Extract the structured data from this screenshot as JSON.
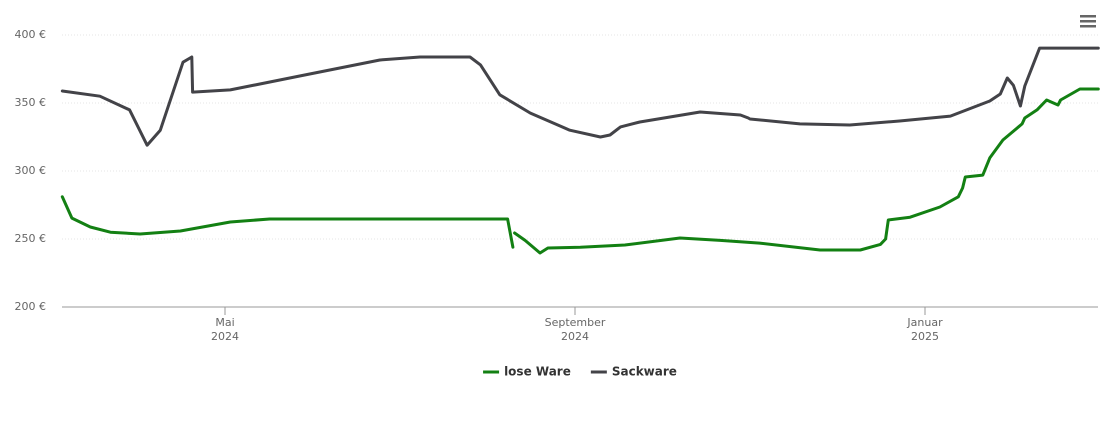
{
  "chart_data": {
    "type": "line",
    "xlim": [
      2.137,
      13.977
    ],
    "xticks": [
      {
        "value": 4,
        "label": "Mai 2024"
      },
      {
        "value": 8,
        "label": "September 2024"
      },
      {
        "value": 12,
        "label": "Januar 2025"
      }
    ],
    "ylim": [
      200,
      400
    ],
    "yticks": [
      {
        "value": 200,
        "label": "200 €"
      },
      {
        "value": 250,
        "label": "250 €"
      },
      {
        "value": 300,
        "label": "300 €"
      },
      {
        "value": 350,
        "label": "350 €"
      },
      {
        "value": 400,
        "label": "400 €"
      }
    ],
    "grid": true,
    "legend": "bottom",
    "series": [
      {
        "name": "lose Ware",
        "color": "#138013",
        "x": [
          2.14,
          2.25,
          2.46,
          2.69,
          3.03,
          3.49,
          4.06,
          4.51,
          6.0,
          7.23,
          7.29,
          7.3,
          7.31,
          7.43,
          7.6,
          7.69,
          8.06,
          8.57,
          9.2,
          9.66,
          10.11,
          10.8,
          11.26,
          11.49,
          11.55,
          11.58,
          11.83,
          12.17,
          12.38,
          12.43,
          12.46,
          12.66,
          12.74,
          12.89,
          13.11,
          13.14,
          13.28,
          13.39,
          13.52,
          13.55,
          13.77,
          13.98
        ],
        "values": [
          281,
          265.4,
          258.8,
          255,
          253.7,
          255.9,
          262.5,
          264.7,
          264.7,
          264.7,
          244,
          null,
          254.4,
          249,
          239.7,
          243.4,
          244,
          245.6,
          250.7,
          249,
          247,
          241.9,
          241.9,
          246,
          250,
          264,
          266,
          273.5,
          281,
          287.5,
          295.6,
          297,
          309.6,
          322.8,
          334.6,
          339,
          344.9,
          352.2,
          348.5,
          352.2,
          360.3,
          360.3
        ]
      },
      {
        "name": "Sackware",
        "color": "#434348",
        "x": [
          2.14,
          2.57,
          2.91,
          3.11,
          3.26,
          3.52,
          3.62,
          3.63,
          4.06,
          4.86,
          5.77,
          6.23,
          6.8,
          6.92,
          7.14,
          7.49,
          7.94,
          8.29,
          8.4,
          8.52,
          8.74,
          9.43,
          9.89,
          9.98,
          10.0,
          10.57,
          11.14,
          11.71,
          12.29,
          12.74,
          12.86,
          12.94,
          13.01,
          13.09,
          13.14,
          13.31,
          13.98
        ],
        "values": [
          358.8,
          355,
          344.9,
          319,
          330,
          380,
          383.8,
          358,
          359.6,
          369.9,
          381.6,
          383.8,
          383.8,
          378,
          356,
          342.6,
          330,
          325,
          326.5,
          332.4,
          336,
          343.4,
          341.2,
          339,
          338.2,
          334.6,
          333.8,
          336.8,
          340.4,
          351.5,
          356.6,
          368.4,
          363,
          347.8,
          362.5,
          390.4,
          390.4
        ]
      }
    ]
  }
}
